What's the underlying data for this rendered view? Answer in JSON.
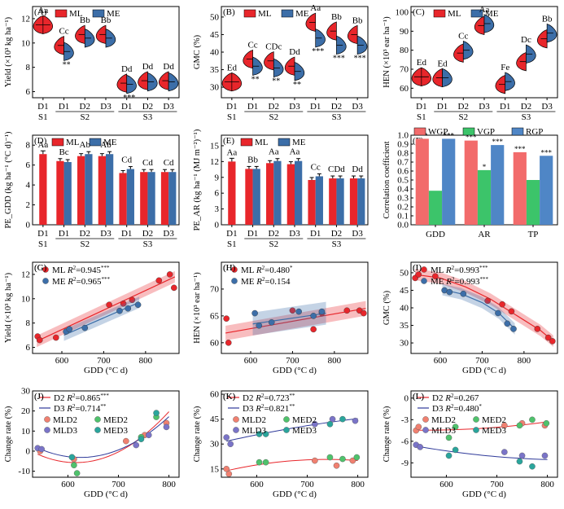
{
  "colors": {
    "ML": "#e8262b",
    "ME": "#3c6ea8",
    "WGP": "#f26b6b",
    "VGP": "#3cc46a",
    "RGP": "#4f86c6",
    "D2": "#e8262b",
    "D3": "#2f3a9a",
    "MLD2": "#f08070",
    "MED2": "#4fc26c",
    "MLD3": "#7a74c8",
    "MED3": "#2aa59c"
  },
  "chart_data": [
    {
      "id": "A",
      "type": "violin",
      "panel_label": "(A)",
      "ylabel": "Yield (×10³ kg ha⁻¹)",
      "ylim": [
        5.5,
        13
      ],
      "yticks": [
        6,
        8,
        10,
        12
      ],
      "legend": [
        "ML",
        "ME"
      ],
      "categories": [
        "D1",
        "D1",
        "D2",
        "D3",
        "D1",
        "D2",
        "D3"
      ],
      "groups": [
        {
          "label": "S1",
          "span": [
            0,
            0
          ]
        },
        {
          "label": "S2",
          "span": [
            1,
            3
          ]
        },
        {
          "label": "S3",
          "span": [
            4,
            6
          ]
        }
      ],
      "series": [
        {
          "name": "ML",
          "values": [
            11.5,
            9.8,
            10.7,
            10.7,
            6.7,
            6.9,
            6.9
          ]
        },
        {
          "name": "ME",
          "values": [
            null,
            9.3,
            10.4,
            10.4,
            6.6,
            6.8,
            6.8
          ]
        }
      ],
      "letters": [
        "Aa",
        "Cc",
        "Bb",
        "Bb",
        "Dd",
        "Dd",
        "Dd"
      ],
      "sig": [
        "",
        "**",
        "",
        "",
        "***",
        "",
        ""
      ]
    },
    {
      "id": "B",
      "type": "violin",
      "panel_label": "(B)",
      "ylabel": "GMC (%)",
      "ylim": [
        27,
        53
      ],
      "yticks": [
        30,
        35,
        40,
        45,
        50
      ],
      "legend": [
        "ML",
        "ME"
      ],
      "categories": [
        "D1",
        "D1",
        "D2",
        "D3",
        "D1",
        "D2",
        "D3"
      ],
      "groups": [
        {
          "label": "S1",
          "span": [
            0,
            0
          ]
        },
        {
          "label": "S2",
          "span": [
            1,
            3
          ]
        },
        {
          "label": "S3",
          "span": [
            4,
            6
          ]
        }
      ],
      "series": [
        {
          "name": "ML",
          "values": [
            31.5,
            38,
            37.5,
            36,
            48.5,
            46,
            45
          ]
        },
        {
          "name": "ME",
          "values": [
            null,
            36,
            35.5,
            34.5,
            44,
            42,
            42
          ]
        }
      ],
      "letters": [
        "Ed",
        "Cc",
        "CDc",
        "Dd",
        "Aa",
        "Bb",
        "Bb"
      ],
      "sig": [
        "",
        "**",
        "**",
        "**",
        "***",
        "***",
        "***"
      ]
    },
    {
      "id": "C",
      "type": "violin",
      "panel_label": "(C)",
      "ylabel": "HEN (×10³ ear ha⁻¹)",
      "ylim": [
        55,
        103
      ],
      "yticks": [
        60,
        70,
        80,
        90,
        100
      ],
      "legend": [
        "ML",
        "ME"
      ],
      "categories": [
        "D1",
        "D1",
        "D2",
        "D3",
        "D1",
        "D2",
        "D3"
      ],
      "groups": [
        {
          "label": "S1",
          "span": [
            0,
            0
          ]
        },
        {
          "label": "S2",
          "span": [
            1,
            3
          ]
        },
        {
          "label": "S3",
          "span": [
            4,
            6
          ]
        }
      ],
      "series": [
        {
          "name": "ML",
          "values": [
            66,
            65.5,
            78.5,
            93,
            62,
            74,
            86
          ]
        },
        {
          "name": "ME",
          "values": [
            null,
            65.5,
            80,
            94,
            63.5,
            78,
            89
          ]
        }
      ],
      "letters": [
        "Ed",
        "Ed",
        "Cc",
        "Aa",
        "Fe",
        "Dc",
        "Bb"
      ],
      "sig": [
        "",
        "",
        "",
        "",
        "",
        "",
        ""
      ]
    },
    {
      "id": "D",
      "type": "bar",
      "panel_label": "(D)",
      "ylabel": "PE_GDD (kg ha⁻¹ (°C d)⁻¹)",
      "ylim": [
        0,
        9
      ],
      "yticks": [
        0,
        2,
        4,
        6,
        8
      ],
      "legend": [
        "ML",
        "ME"
      ],
      "categories": [
        "D1",
        "D1",
        "D2",
        "D3",
        "D1",
        "D2",
        "D3"
      ],
      "groups": [
        {
          "label": "S1",
          "span": [
            0,
            0
          ]
        },
        {
          "label": "S2",
          "span": [
            1,
            3
          ]
        },
        {
          "label": "S3",
          "span": [
            4,
            6
          ]
        }
      ],
      "series": [
        {
          "name": "ML",
          "values": [
            7.1,
            6.4,
            6.9,
            6.9,
            5.2,
            5.3,
            5.3
          ]
        },
        {
          "name": "ME",
          "values": [
            null,
            6.3,
            7.1,
            7.1,
            5.6,
            5.3,
            5.3
          ]
        }
      ],
      "letters": [
        "Aa",
        "Bc",
        "Ab",
        "Ab",
        "Cd",
        "Cd",
        "Cd"
      ]
    },
    {
      "id": "E",
      "type": "bar",
      "panel_label": "(E)",
      "ylabel": "PE_AR (kg ha⁻¹ (MJ m⁻²)⁻¹)",
      "ylim": [
        0,
        17
      ],
      "yticks": [
        0,
        3,
        6,
        9,
        12,
        15
      ],
      "legend": [
        "ML",
        "ME"
      ],
      "categories": [
        "D1",
        "D1",
        "D2",
        "D3",
        "D1",
        "D2",
        "D3"
      ],
      "groups": [
        {
          "label": "S1",
          "span": [
            0,
            0
          ]
        },
        {
          "label": "S2",
          "span": [
            1,
            3
          ]
        },
        {
          "label": "S3",
          "span": [
            4,
            6
          ]
        }
      ],
      "series": [
        {
          "name": "ML",
          "values": [
            12,
            10.6,
            11.7,
            11.5,
            8.5,
            8.8,
            8.8
          ]
        },
        {
          "name": "ME",
          "values": [
            null,
            10.6,
            12.1,
            12.1,
            9.2,
            8.8,
            8.8
          ]
        }
      ],
      "letters": [
        "Aa",
        "Bb",
        "Aa",
        "Aa",
        "Cc",
        "CDd",
        "Dd"
      ]
    },
    {
      "id": "F",
      "type": "bar",
      "panel_label": "(F)",
      "ylabel": "Correlation coefficient",
      "ylim": [
        0,
        1
      ],
      "yticks": [
        0,
        0.1,
        0.2,
        0.3,
        0.4,
        0.5,
        0.6,
        0.7,
        0.8,
        0.9,
        1.0
      ],
      "legend": [
        "WGP",
        "VGP",
        "RGP"
      ],
      "categories": [
        "GDD",
        "AR",
        "TP"
      ],
      "series": [
        {
          "name": "WGP",
          "values": [
            0.96,
            0.94,
            0.81
          ]
        },
        {
          "name": "VGP",
          "values": [
            0.38,
            0.61,
            0.5
          ]
        },
        {
          "name": "RGP",
          "values": [
            0.96,
            0.89,
            0.77
          ]
        }
      ],
      "sig": [
        [
          "***",
          "",
          "***"
        ],
        [
          "***",
          "*",
          "***"
        ],
        [
          "***",
          "",
          "***"
        ]
      ]
    },
    {
      "id": "G",
      "type": "scatter",
      "panel_label": "(G)",
      "xlabel": "GDD (°C d)",
      "ylabel": "Yield (×10³ kg ha⁻¹)",
      "xlim": [
        530,
        880
      ],
      "ylim": [
        5.5,
        13
      ],
      "xticks": [
        600,
        700,
        800
      ],
      "yticks": [
        6,
        8,
        10,
        12
      ],
      "series": [
        {
          "name": "ML",
          "r2": "0.945",
          "sig": "***",
          "x": [
            542,
            547,
            586,
            713,
            747,
            768,
            832,
            858,
            868
          ],
          "y": [
            6.9,
            6.6,
            6.8,
            9.5,
            9.6,
            9.9,
            11.5,
            12.0,
            10.9
          ],
          "fit": [
            [
              540,
              6.5
            ],
            [
              870,
              11.8
            ]
          ]
        },
        {
          "name": "ME",
          "r2": "0.965",
          "sig": "***",
          "x": [
            610,
            618,
            655,
            738,
            758,
            782
          ],
          "y": [
            7.3,
            7.5,
            7.6,
            9.0,
            9.2,
            9.5
          ],
          "fit": [
            [
              605,
              7.0
            ],
            [
              785,
              9.7
            ]
          ]
        }
      ]
    },
    {
      "id": "H",
      "type": "scatter",
      "panel_label": "(H)",
      "xlabel": "GDD (°C d)",
      "ylabel": "HEN (×10³ ear ha⁻¹)",
      "xlim": [
        530,
        880
      ],
      "ylim": [
        58,
        75
      ],
      "xticks": [
        600,
        700,
        800
      ],
      "yticks": [
        60,
        65,
        70
      ],
      "series": [
        {
          "name": "ML",
          "r2": "0.480",
          "sig": "*",
          "x": [
            542,
            547,
            700,
            750,
            770,
            830,
            860,
            870
          ],
          "y": [
            64.5,
            60,
            66,
            62.5,
            65.5,
            66,
            66,
            65.5
          ],
          "fit": [
            [
              540,
              61.8
            ],
            [
              875,
              66.4
            ]
          ]
        },
        {
          "name": "ME",
          "r2": "0.154",
          "sig": "",
          "x": [
            610,
            620,
            650,
            715,
            750,
            770
          ],
          "y": [
            65.5,
            63.2,
            63.8,
            65.8,
            65,
            65.8
          ],
          "fit": [
            [
              605,
              63.5
            ],
            [
              780,
              65.5
            ]
          ]
        }
      ]
    },
    {
      "id": "I",
      "type": "scatter",
      "panel_label": "(I)",
      "xlabel": "GDD (°C d)",
      "ylabel": "GMC (%)",
      "xlim": [
        530,
        880
      ],
      "ylim": [
        27,
        53
      ],
      "xticks": [
        600,
        700,
        800
      ],
      "yticks": [
        30,
        35,
        40,
        45,
        50
      ],
      "series": [
        {
          "name": "ML",
          "r2": "0.993",
          "sig": "***",
          "x": [
            540,
            548,
            588,
            713,
            748,
            770,
            832,
            858,
            868
          ],
          "y": [
            48.5,
            49.5,
            49,
            42,
            41,
            39,
            34,
            31.5,
            30.5
          ],
          "fit": [
            [
              540,
              49.5
            ],
            [
              600,
              48.5
            ],
            [
              660,
              46
            ],
            [
              720,
              42.5
            ],
            [
              780,
              38
            ],
            [
              840,
              33.5
            ],
            [
              870,
              30.5
            ]
          ]
        },
        {
          "name": "ME",
          "r2": "0.993",
          "sig": "***",
          "x": [
            610,
            622,
            655,
            738,
            760,
            775
          ],
          "y": [
            45,
            44.5,
            44,
            38.5,
            35.5,
            34
          ],
          "fit": [
            [
              605,
              45.2
            ],
            [
              650,
              44
            ],
            [
              700,
              41.5
            ],
            [
              740,
              38.5
            ],
            [
              778,
              34
            ]
          ]
        }
      ]
    },
    {
      "id": "J",
      "type": "scatter",
      "panel_label": "(J)",
      "xlabel": "GDD (°C d)",
      "ylabel": "Change rate (%)",
      "xlim": [
        530,
        820
      ],
      "ylim": [
        -13,
        30
      ],
      "xticks": [
        600,
        700,
        800
      ],
      "yticks": [
        -10,
        0,
        10,
        20,
        30
      ],
      "fits": [
        {
          "name": "D2",
          "r2": "0.865",
          "sig": "***"
        },
        {
          "name": "D3",
          "r2": "0.714",
          "sig": "**"
        }
      ],
      "legend": [
        "MLD2",
        "MED2",
        "MLD3",
        "MED3"
      ],
      "series": [
        {
          "name": "MLD2",
          "x": [
            545,
            612,
            715,
            752,
            795
          ],
          "y": [
            0,
            -4,
            5,
            8,
            14
          ]
        },
        {
          "name": "MED2",
          "x": [
            612,
            618,
            745,
            775
          ],
          "y": [
            -7,
            -11,
            7,
            17
          ]
        },
        {
          "name": "MLD3",
          "x": [
            540,
            548,
            735,
            760,
            795
          ],
          "y": [
            1.5,
            1,
            3,
            8,
            12
          ]
        },
        {
          "name": "MED3",
          "x": [
            608,
            745,
            775
          ],
          "y": [
            -3,
            6,
            19
          ]
        }
      ]
    },
    {
      "id": "K",
      "type": "scatter",
      "panel_label": "(K)",
      "xlabel": "GDD (°C d)",
      "ylabel": "Change rate (%)",
      "xlim": [
        530,
        820
      ],
      "ylim": [
        10,
        62
      ],
      "xticks": [
        600,
        700,
        800
      ],
      "yticks": [
        15,
        30,
        45,
        60
      ],
      "fits": [
        {
          "name": "D2",
          "r2": "0.723",
          "sig": "**"
        },
        {
          "name": "D3",
          "r2": "0.821",
          "sig": "**"
        }
      ],
      "legend": [
        "MLD2",
        "MED2",
        "MLD3",
        "MED3"
      ],
      "series": [
        {
          "name": "MLD2",
          "x": [
            540,
            545,
            715,
            758,
            790
          ],
          "y": [
            15,
            12,
            20,
            17,
            20
          ]
        },
        {
          "name": "MED2",
          "x": [
            605,
            618,
            745,
            770,
            798
          ],
          "y": [
            19,
            19,
            22,
            21,
            22
          ]
        },
        {
          "name": "MLD3",
          "x": [
            540,
            548,
            715,
            750,
            795
          ],
          "y": [
            34,
            30,
            42,
            45,
            44
          ]
        },
        {
          "name": "MED3",
          "x": [
            605,
            618,
            745,
            770
          ],
          "y": [
            36,
            36,
            42,
            45
          ]
        }
      ]
    },
    {
      "id": "L",
      "type": "scatter",
      "panel_label": "(L)",
      "xlabel": "GDD (°C d)",
      "ylabel": "Change rate (%)",
      "xlim": [
        530,
        820
      ],
      "ylim": [
        -11,
        1
      ],
      "xticks": [
        600,
        700,
        800
      ],
      "yticks": [
        -9,
        -6,
        -3,
        0
      ],
      "fits": [
        {
          "name": "D2",
          "r2": "0.267",
          "sig": ""
        },
        {
          "name": "D3",
          "r2": "0.480",
          "sig": "*"
        }
      ],
      "legend": [
        "MLD2",
        "MED2",
        "MLD3",
        "MED3"
      ],
      "series": [
        {
          "name": "MLD2",
          "x": [
            540,
            545,
            715,
            750,
            795
          ],
          "y": [
            -4.5,
            -4,
            -3.8,
            -3.5,
            -3.8
          ]
        },
        {
          "name": "MED2",
          "x": [
            605,
            618,
            745,
            770,
            798
          ],
          "y": [
            -5.5,
            -4,
            -3.8,
            -3,
            -3.5
          ]
        },
        {
          "name": "MLD3",
          "x": [
            540,
            548,
            715,
            750,
            795
          ],
          "y": [
            -6.5,
            -6.8,
            -7.5,
            -8,
            -8
          ]
        },
        {
          "name": "MED3",
          "x": [
            605,
            618,
            745,
            770
          ],
          "y": [
            -8,
            -7.2,
            -8.8,
            -9.5
          ]
        }
      ]
    }
  ]
}
